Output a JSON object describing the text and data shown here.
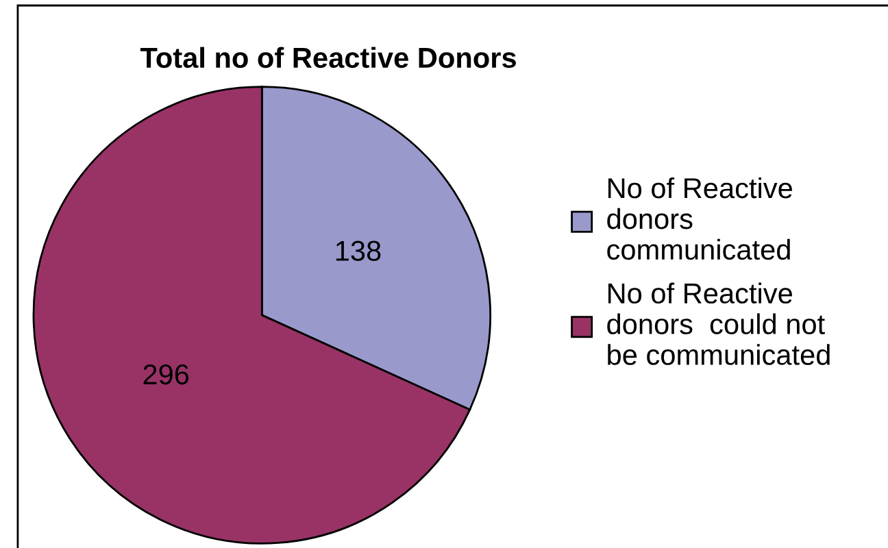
{
  "chart_data": {
    "type": "pie",
    "title": "Total no of Reactive Donors",
    "categories": [
      "No of Reactive donors communicated",
      "No of Reactive donors  could not be communicated"
    ],
    "values": [
      138,
      296
    ],
    "colors": [
      "#9999cc",
      "#993366"
    ],
    "data_labels": true,
    "legend": "right"
  }
}
